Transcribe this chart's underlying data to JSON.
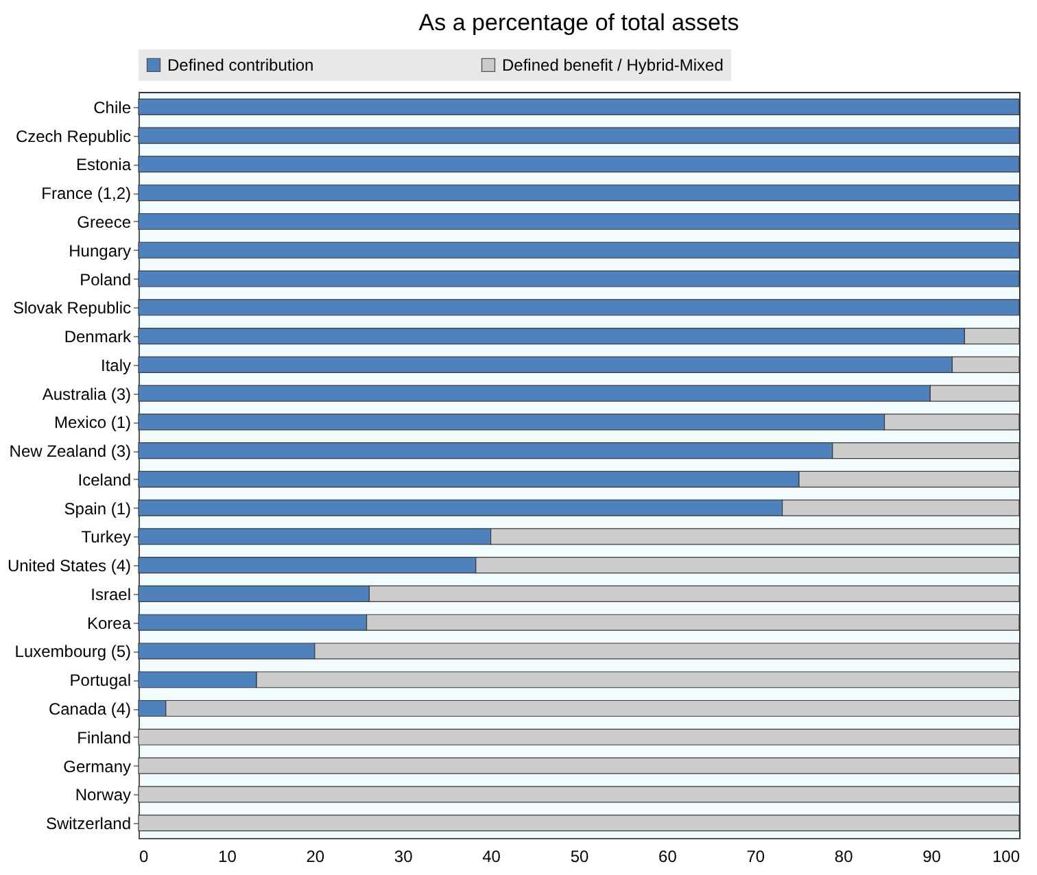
{
  "chart_data": {
    "type": "bar",
    "orientation": "horizontal",
    "stacked": true,
    "title": "As a percentage of total assets",
    "categories": [
      "Chile",
      "Czech Republic",
      "Estonia",
      "France (1,2)",
      "Greece",
      "Hungary",
      "Poland",
      "Slovak Republic",
      "Denmark",
      "Italy",
      "Australia (3)",
      "Mexico (1)",
      "New Zealand (3)",
      "Iceland",
      "Spain (1)",
      "Turkey",
      "United States (4)",
      "Israel",
      "Korea",
      "Luxembourg (5)",
      "Portugal",
      "Canada (4)",
      "Finland",
      "Germany",
      "Norway",
      "Switzerland"
    ],
    "series": [
      {
        "name": "Defined contribution",
        "color": "#4f81bd",
        "values": [
          100,
          100,
          100,
          100,
          100,
          100,
          100,
          100,
          93.8,
          92.4,
          89.9,
          84.7,
          78.8,
          75.0,
          73.1,
          40.0,
          38.3,
          26.2,
          25.9,
          20.0,
          13.4,
          3.1,
          null,
          null,
          null,
          null
        ]
      },
      {
        "name": "Defined benefit / Hybrid-Mixed",
        "color": "#cccccc",
        "values": [
          null,
          null,
          null,
          null,
          null,
          null,
          null,
          null,
          6.2,
          7.6,
          10.1,
          15.3,
          21.2,
          25.0,
          26.9,
          60.0,
          61.7,
          73.8,
          74.1,
          80.0,
          86.6,
          96.9,
          100,
          100,
          100,
          100
        ]
      }
    ],
    "xlim": [
      0,
      100
    ],
    "xticks": [
      0,
      10,
      20,
      30,
      40,
      50,
      60,
      70,
      80,
      90,
      100
    ],
    "legend": "top",
    "grid": false
  }
}
